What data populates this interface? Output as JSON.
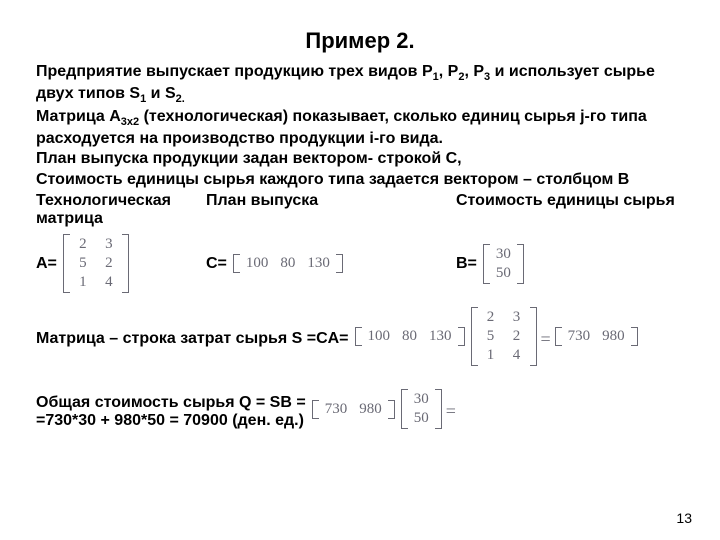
{
  "title": "Пример 2.",
  "para_html": "Предприятие выпускает продукцию трех видов P<span class=\"sub\">1</span>, P<span class=\"sub\">2</span>, P<span class=\"sub\">3</span>  и использует сырье двух типов S<span class=\"sub\">1</span> и S<span class=\"sub\">2.</span><br>Матрица A<span class=\"sub\">3x2</span> (технологическая) показывает, сколько единиц сырья j-го типа расходуется на производство продукции i-го вида.<br>План выпуска продукции задан вектором- строкой C,<br>Стоимость единицы сырья каждого типа задается вектором – столбцом B",
  "labels": {
    "tech": "Технологическая матрица",
    "plan": "План выпуска",
    "cost": "Стоимость единицы сырья",
    "A": "A=",
    "C": "C=",
    "B": "B="
  },
  "A": [
    [
      "2",
      "3"
    ],
    [
      "5",
      "2"
    ],
    [
      "1",
      "4"
    ]
  ],
  "C": [
    [
      "100",
      "80",
      "130"
    ]
  ],
  "B": [
    [
      "30"
    ],
    [
      "50"
    ]
  ],
  "S_label": "Матрица – строка затрат сырья S =CA=",
  "S_C": [
    [
      "100",
      "80",
      "130"
    ]
  ],
  "S_A": [
    [
      "2",
      "3"
    ],
    [
      "5",
      "2"
    ],
    [
      "1",
      "4"
    ]
  ],
  "S_res": [
    [
      "730",
      "980"
    ]
  ],
  "Q_line1": "Общая стоимость сырья  Q = SB =",
  "Q_line2": "=730*30 + 980*50 = 70900 (ден. ед.)",
  "Q_S": [
    [
      "730",
      "980"
    ]
  ],
  "Q_B": [
    [
      "30"
    ],
    [
      "50"
    ]
  ],
  "pagenum": "13",
  "style": {
    "dim": [
      720,
      540
    ],
    "bg": "#ffffff",
    "text_color": "#000000",
    "math_color": "#6a6a75",
    "title_fontsize": 22,
    "body_fontsize": 16,
    "matrix_fontsize": 15,
    "font_body": "Arial",
    "font_math": "Times New Roman"
  }
}
